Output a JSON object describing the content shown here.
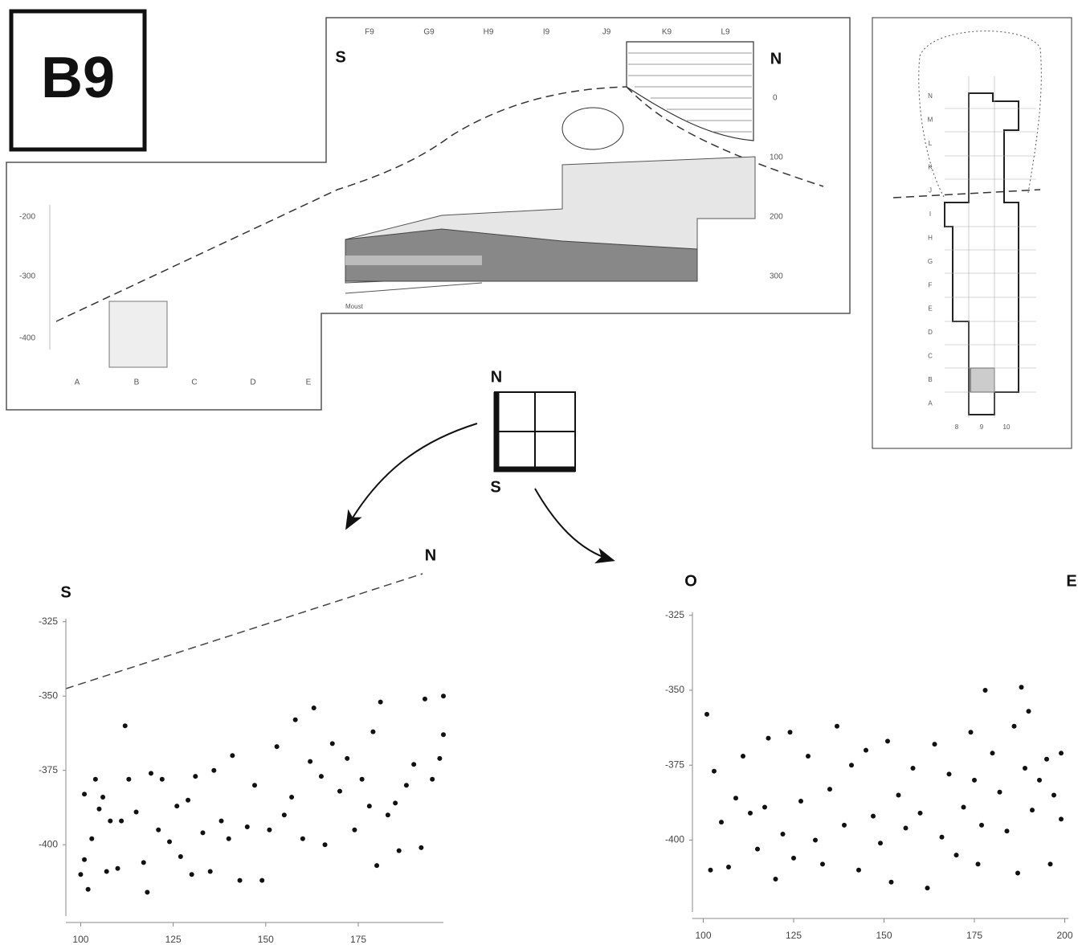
{
  "panel_label": "B9",
  "section": {
    "orientation": [
      "S",
      "N"
    ],
    "columns": [
      "F9",
      "G9",
      "H9",
      "I9",
      "J9",
      "K9",
      "L9"
    ],
    "depths": [
      "0",
      "100",
      "200",
      "300"
    ],
    "left_depths": [
      "-200",
      "-300",
      "-400"
    ],
    "squares": [
      "A",
      "B",
      "C",
      "D",
      "E"
    ],
    "note": "Moust"
  },
  "plan": {
    "rows": [
      "N",
      "M",
      "L",
      "K",
      "J",
      "I",
      "H",
      "G",
      "F",
      "E",
      "D",
      "C",
      "B",
      "A"
    ],
    "cols": [
      "8",
      "9",
      "10"
    ]
  },
  "compass": [
    "N",
    "S"
  ],
  "chart_data": [
    {
      "type": "scatter",
      "annotations": [
        "S",
        "N"
      ],
      "color": "#111",
      "x": [
        100,
        101,
        101,
        102,
        103,
        104,
        105,
        106,
        107,
        108,
        110,
        111,
        112,
        113,
        115,
        117,
        118,
        119,
        121,
        122,
        124,
        126,
        127,
        129,
        130,
        131,
        133,
        135,
        136,
        138,
        140,
        141,
        143,
        145,
        147,
        149,
        151,
        153,
        155,
        157,
        158,
        160,
        162,
        163,
        165,
        166,
        168,
        170,
        172,
        174,
        176,
        178,
        179,
        180,
        181,
        183,
        185,
        186,
        188,
        190,
        192,
        193,
        195,
        197,
        198,
        198
      ],
      "y": [
        -410,
        -405,
        -383,
        -415,
        -398,
        -378,
        -388,
        -384,
        -409,
        -392,
        -408,
        -392,
        -360,
        -378,
        -389,
        -406,
        -416,
        -376,
        -395,
        -378,
        -399,
        -387,
        -404,
        -385,
        -410,
        -377,
        -396,
        -409,
        -375,
        -392,
        -398,
        -370,
        -412,
        -394,
        -380,
        -412,
        -395,
        -367,
        -390,
        -384,
        -358,
        -398,
        -372,
        -354,
        -377,
        -400,
        -366,
        -382,
        -371,
        -395,
        -378,
        -387,
        -362,
        -407,
        -352,
        -390,
        -386,
        -402,
        -380,
        -373,
        -401,
        -351,
        -378,
        -371,
        -350,
        -363
      ],
      "xlim": [
        96,
        198
      ],
      "ylim": [
        -424,
        -324
      ],
      "xticks": [
        100,
        125,
        150,
        175
      ],
      "yticks": [
        -325,
        -350,
        -375,
        -400
      ]
    },
    {
      "type": "scatter",
      "annotations": [
        "O",
        "E"
      ],
      "color": "#111",
      "x": [
        101,
        102,
        103,
        105,
        107,
        109,
        111,
        113,
        115,
        117,
        118,
        120,
        122,
        124,
        125,
        127,
        129,
        131,
        133,
        135,
        137,
        139,
        141,
        143,
        145,
        147,
        149,
        151,
        152,
        154,
        156,
        158,
        160,
        162,
        164,
        166,
        168,
        170,
        172,
        174,
        175,
        176,
        177,
        178,
        180,
        182,
        184,
        186,
        187,
        188,
        189,
        190,
        191,
        193,
        195,
        196,
        197,
        199,
        199
      ],
      "y": [
        -358,
        -410,
        -377,
        -394,
        -409,
        -386,
        -372,
        -391,
        -403,
        -389,
        -366,
        -413,
        -398,
        -364,
        -406,
        -387,
        -372,
        -400,
        -408,
        -383,
        -362,
        -395,
        -375,
        -410,
        -370,
        -392,
        -401,
        -367,
        -414,
        -385,
        -396,
        -376,
        -391,
        -416,
        -368,
        -399,
        -378,
        -405,
        -389,
        -364,
        -380,
        -408,
        -395,
        -350,
        -371,
        -384,
        -397,
        -362,
        -411,
        -349,
        -376,
        -357,
        -390,
        -380,
        -373,
        -408,
        -385,
        -371,
        -393
      ],
      "xlim": [
        97,
        201
      ],
      "ylim": [
        -424,
        -324
      ],
      "xticks": [
        100,
        125,
        150,
        175,
        200
      ],
      "yticks": [
        -325,
        -350,
        -375,
        -400
      ]
    }
  ]
}
